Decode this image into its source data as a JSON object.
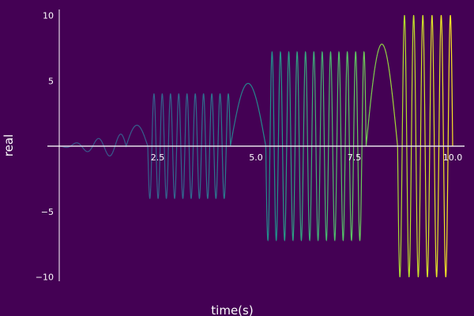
{
  "chart_data": {
    "type": "line",
    "title": "",
    "xlabel": "time(s)",
    "ylabel": "real",
    "xlim": [
      0,
      10
    ],
    "ylim": [
      -10,
      10
    ],
    "x_ticks": [
      2.5,
      5.0,
      7.5,
      10.0
    ],
    "x_tick_labels": [
      "2.5",
      "5.0",
      "7.5",
      "10.0"
    ],
    "y_ticks": [
      -10,
      -5,
      5,
      10
    ],
    "y_tick_labels": [
      "−10",
      "−5",
      "5",
      "10"
    ],
    "grid": false,
    "legend": "none",
    "background_color": "#440154",
    "axis_color": "#ffffff",
    "color_gradient": [
      "#3b528b",
      "#21918c",
      "#5ec962",
      "#fde725"
    ],
    "series": [
      {
        "segments": [
          {
            "x_range": [
              0,
              1.7
            ],
            "shape": "growing oscillation",
            "peak": 1
          },
          {
            "x_range": [
              1.7,
              2.25
            ],
            "shape": "slow bump",
            "peak": 1.6
          },
          {
            "x_range": [
              2.25,
              4.35
            ],
            "shape": "fast oscillation",
            "peak": 4
          },
          {
            "x_range": [
              4.35,
              5.25
            ],
            "shape": "slow bump",
            "peak": 4.8
          },
          {
            "x_range": [
              5.25,
              7.8
            ],
            "shape": "fast oscillation",
            "peak": 7.2
          },
          {
            "x_range": [
              7.8,
              8.6
            ],
            "shape": "slow bump",
            "peak": 7.8
          },
          {
            "x_range": [
              8.6,
              10.0
            ],
            "shape": "fast oscillation",
            "peak": 10
          }
        ]
      }
    ]
  }
}
